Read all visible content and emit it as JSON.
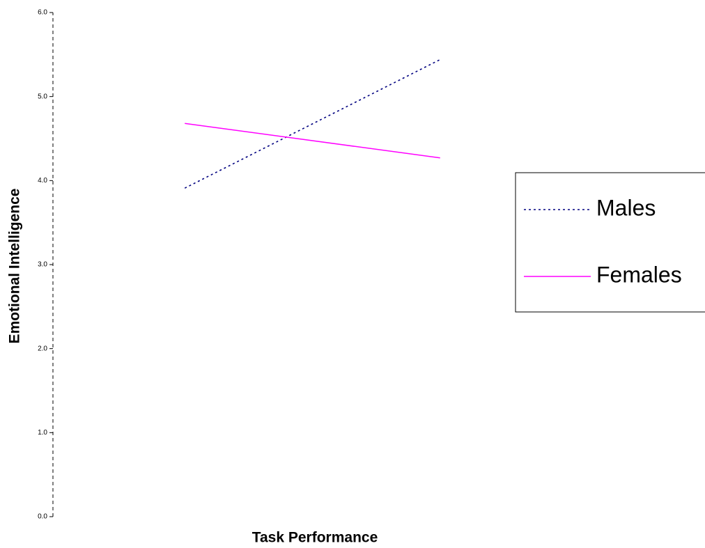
{
  "chart_data": {
    "type": "line",
    "x_label": "Task Performance",
    "y_label": "Emotional Intelligence",
    "categories": [
      null,
      null
    ],
    "series": [
      {
        "name": "Males",
        "color": "#000080",
        "style": "dotted",
        "values": [
          3.91,
          5.44
        ]
      },
      {
        "name": "Females",
        "color": "#ff00ff",
        "style": "solid",
        "values": [
          4.68,
          4.27
        ]
      }
    ],
    "ylim": [
      0,
      6
    ],
    "yticks": [
      {
        "value": 0,
        "label": "0.0"
      },
      {
        "value": 1,
        "label": "1.0"
      },
      {
        "value": 2,
        "label": "2.0"
      },
      {
        "value": 3,
        "label": "3.0"
      },
      {
        "value": 4,
        "label": "4.0"
      },
      {
        "value": 5,
        "label": "5.0"
      },
      {
        "value": 6,
        "label": "6.0"
      }
    ],
    "grid": false,
    "legend": "right"
  }
}
